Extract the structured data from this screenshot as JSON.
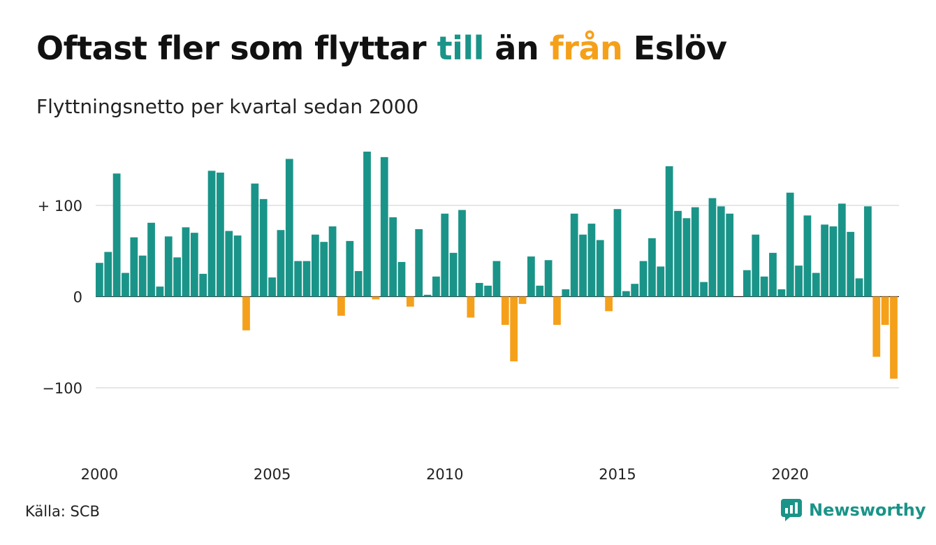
{
  "header": {
    "title_part1": "Oftast fler som flyttar ",
    "title_till": "till",
    "title_part2": " än ",
    "title_fran": "från",
    "title_part3": " Eslöv",
    "subtitle": "Flyttningsnetto per kvartal sedan 2000"
  },
  "footer": {
    "source": "Källa: SCB",
    "brand": "Newsworthy",
    "brand_icon": "newsworthy-logo-icon"
  },
  "colors": {
    "positive": "#1a9488",
    "negative": "#f5a01a",
    "grid": "#dddddd",
    "text": "#222222"
  },
  "chart_data": {
    "type": "bar",
    "title": "Oftast fler som flyttar till än från Eslöv",
    "subtitle": "Flyttningsnetto per kvartal sedan 2000",
    "x_start_year": 2000,
    "x_start_quarter": 1,
    "x_ticks": [
      "2000",
      "2005",
      "2010",
      "2015",
      "2020"
    ],
    "y_ticks": [
      {
        "value": 100,
        "label": "+ 100"
      },
      {
        "value": 0,
        "label": "0"
      },
      {
        "value": -100,
        "label": "−100"
      }
    ],
    "ylim": [
      -170,
      170
    ],
    "grid": true,
    "values": [
      37,
      49,
      135,
      26,
      65,
      45,
      81,
      11,
      66,
      43,
      76,
      70,
      25,
      138,
      136,
      72,
      67,
      -37,
      124,
      107,
      21,
      73,
      151,
      39,
      39,
      68,
      60,
      77,
      -21,
      61,
      28,
      159,
      -3,
      153,
      87,
      38,
      -11,
      74,
      2,
      22,
      91,
      48,
      95,
      -23,
      15,
      12,
      39,
      -31,
      -71,
      -8,
      44,
      12,
      40,
      -31,
      8,
      91,
      68,
      80,
      62,
      -16,
      96,
      6,
      14,
      39,
      64,
      33,
      143,
      94,
      86,
      98,
      16,
      108,
      99,
      91,
      0,
      29,
      68,
      22,
      48,
      8,
      114,
      34,
      89,
      26,
      79,
      77,
      102,
      71,
      20,
      99,
      -66,
      -31,
      -90
    ]
  }
}
